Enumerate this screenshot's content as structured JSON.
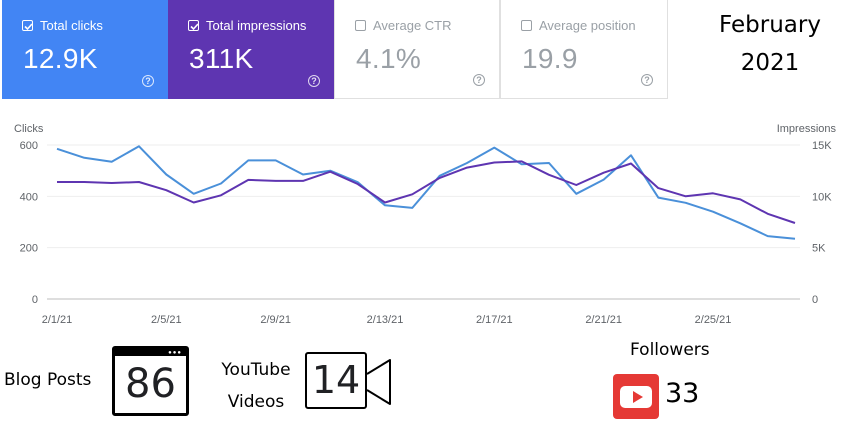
{
  "metrics": {
    "clicks": {
      "label": "Total clicks",
      "value": "12.9K",
      "checked": true,
      "color": "#4285f4"
    },
    "impressions": {
      "label": "Total impressions",
      "value": "311K",
      "checked": true,
      "color": "#5e35b1"
    },
    "ctr": {
      "label": "Average CTR",
      "value": "4.1%",
      "checked": false
    },
    "position": {
      "label": "Average position",
      "value": "19.9",
      "checked": false
    },
    "help_glyph": "?"
  },
  "period": {
    "line1": "February",
    "line2": "2021"
  },
  "chart_data": {
    "type": "line",
    "ylabel_left": "Clicks",
    "ylabel_right": "Impressions",
    "ylim_left": [
      0,
      600
    ],
    "ylim_right": [
      0,
      15000
    ],
    "yticks_left": [
      "0",
      "200",
      "400",
      "600"
    ],
    "yticks_right": [
      "0",
      "5K",
      "10K",
      "15K"
    ],
    "xtick_labels": [
      "2/1/21",
      "2/5/21",
      "2/9/21",
      "2/13/21",
      "2/17/21",
      "2/21/21",
      "2/25/21"
    ],
    "x": [
      "2/1/21",
      "2/2/21",
      "2/3/21",
      "2/4/21",
      "2/5/21",
      "2/6/21",
      "2/7/21",
      "2/8/21",
      "2/9/21",
      "2/10/21",
      "2/11/21",
      "2/12/21",
      "2/13/21",
      "2/14/21",
      "2/15/21",
      "2/16/21",
      "2/17/21",
      "2/18/21",
      "2/19/21",
      "2/20/21",
      "2/21/21",
      "2/22/21",
      "2/23/21",
      "2/24/21",
      "2/25/21",
      "2/26/21",
      "2/27/21",
      "2/28/21"
    ],
    "grid": true,
    "series": [
      {
        "name": "Clicks",
        "axis": "left",
        "color": "#4a90d9",
        "values": [
          585,
          550,
          535,
          595,
          485,
          410,
          450,
          540,
          540,
          485,
          500,
          455,
          365,
          355,
          480,
          530,
          590,
          525,
          530,
          410,
          465,
          560,
          395,
          375,
          340,
          295,
          245,
          235
        ]
      },
      {
        "name": "Impressions",
        "axis": "right",
        "color": "#5e35b1",
        "values": [
          11400,
          11400,
          11300,
          11400,
          10600,
          9400,
          10100,
          11600,
          11500,
          11500,
          12400,
          11200,
          9400,
          10200,
          11800,
          12800,
          13300,
          13400,
          12100,
          11100,
          12300,
          13200,
          10800,
          10000,
          10300,
          9700,
          8300,
          7400
        ]
      }
    ]
  },
  "stats": {
    "blog_label": "Blog Posts",
    "blog_count": "86",
    "youtube_label_1": "YouTube",
    "youtube_label_2": "Videos",
    "video_count": "14",
    "followers_label": "Followers",
    "followers_count": "33",
    "youtube_icon": "youtube-play-icon"
  }
}
